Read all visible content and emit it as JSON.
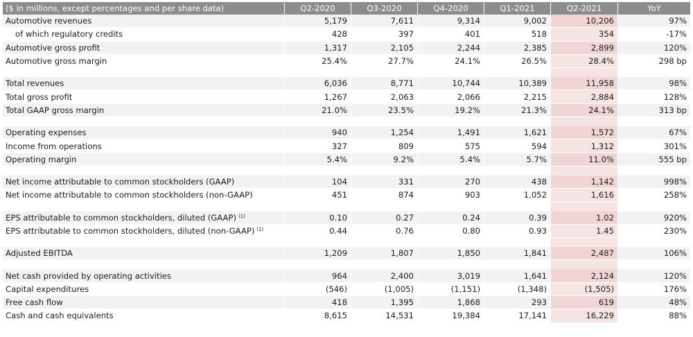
{
  "table": {
    "header": [
      "($ in millions, except percentages and per share data)",
      "Q2-2020",
      "Q3-2020",
      "Q4-2020",
      "Q1-2021",
      "Q2-2021",
      "YoY"
    ],
    "sections": [
      [
        {
          "label": "Automotive revenues",
          "values": [
            "5,179",
            "7,611",
            "9,314",
            "9,002",
            "10,206",
            "97%"
          ]
        },
        {
          "label": "of which regulatory credits",
          "indent": true,
          "values": [
            "428",
            "397",
            "401",
            "518",
            "354",
            "-17%"
          ]
        },
        {
          "label": "Automotive gross profit",
          "values": [
            "1,317",
            "2,105",
            "2,244",
            "2,385",
            "2,899",
            "120%"
          ]
        },
        {
          "label": "Automotive gross margin",
          "values": [
            "25.4%",
            "27.7%",
            "24.1%",
            "26.5%",
            "28.4%",
            "298 bp"
          ]
        }
      ],
      [
        {
          "label": "Total revenues",
          "values": [
            "6,036",
            "8,771",
            "10,744",
            "10,389",
            "11,958",
            "98%"
          ]
        },
        {
          "label": "Total gross profit",
          "values": [
            "1,267",
            "2,063",
            "2,066",
            "2,215",
            "2,884",
            "128%"
          ]
        },
        {
          "label": "Total GAAP gross margin",
          "values": [
            "21.0%",
            "23.5%",
            "19.2%",
            "21.3%",
            "24.1%",
            "313 bp"
          ]
        }
      ],
      [
        {
          "label": "Operating expenses",
          "values": [
            "940",
            "1,254",
            "1,491",
            "1,621",
            "1,572",
            "67%"
          ]
        },
        {
          "label": "Income from operations",
          "values": [
            "327",
            "809",
            "575",
            "594",
            "1,312",
            "301%"
          ]
        },
        {
          "label": "Operating margin",
          "values": [
            "5.4%",
            "9.2%",
            "5.4%",
            "5.7%",
            "11.0%",
            "555 bp"
          ]
        }
      ],
      [
        {
          "label": "Net income attributable to common stockholders (GAAP)",
          "values": [
            "104",
            "331",
            "270",
            "438",
            "1,142",
            "998%"
          ]
        },
        {
          "label": "Net income attributable to common stockholders (non-GAAP)",
          "values": [
            "451",
            "874",
            "903",
            "1,052",
            "1,616",
            "258%"
          ]
        }
      ],
      [
        {
          "label": "EPS attributable to common stockholders, diluted (GAAP)",
          "footnote": "(1)",
          "values": [
            "0.10",
            "0.27",
            "0.24",
            "0.39",
            "1.02",
            "920%"
          ]
        },
        {
          "label": "EPS attributable to common stockholders, diluted (non-GAAP)",
          "footnote": "(1)",
          "values": [
            "0.44",
            "0.76",
            "0.80",
            "0.93",
            "1.45",
            "230%"
          ]
        }
      ],
      [
        {
          "label": "Adjusted EBITDA",
          "values": [
            "1,209",
            "1,807",
            "1,850",
            "1,841",
            "2,487",
            "106%"
          ]
        }
      ],
      [
        {
          "label": "Net cash provided by operating activities",
          "values": [
            "964",
            "2,400",
            "3,019",
            "1,641",
            "2,124",
            "120%"
          ]
        },
        {
          "label": "Capital expenditures",
          "values": [
            "(546)",
            "(1,005)",
            "(1,151)",
            "(1,348)",
            "(1,505)",
            "176%"
          ]
        },
        {
          "label": "Free cash flow",
          "values": [
            "418",
            "1,395",
            "1,868",
            "293",
            "619",
            "48%"
          ]
        },
        {
          "label": "Cash and cash equivalents",
          "values": [
            "8,615",
            "14,531",
            "19,384",
            "17,141",
            "16,229",
            "88%"
          ]
        }
      ]
    ],
    "highlight_column": "Q2-2021",
    "colors": {
      "header_bg": "#8c8c8c",
      "row_shade": "#f2f2f2",
      "highlight": "#f3dcdc"
    }
  }
}
